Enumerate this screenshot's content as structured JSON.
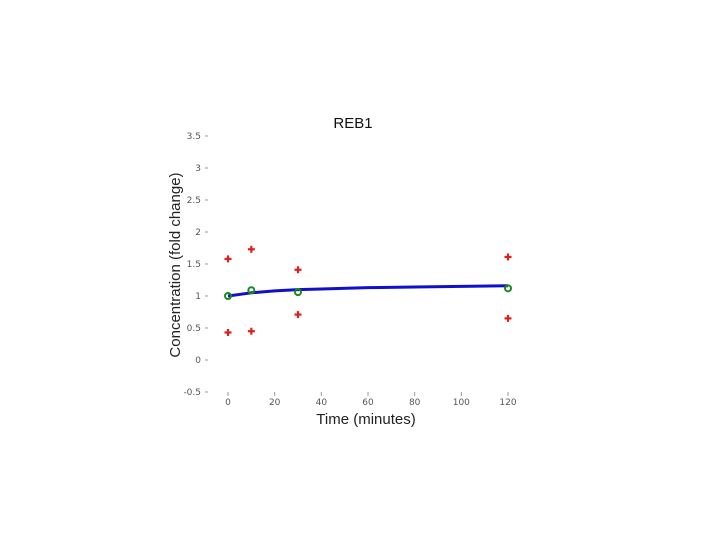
{
  "chart_data": {
    "type": "scatter",
    "title": "REB1",
    "xlabel": "Time (minutes)",
    "ylabel": "Concentration (fold change)",
    "xlim": [
      0,
      120
    ],
    "ylim": [
      -0.5,
      3.5
    ],
    "x_ticks": [
      "0",
      "20",
      "40",
      "60",
      "80",
      "100",
      "120"
    ],
    "y_ticks": [
      "-0.5",
      "0",
      "0.5",
      "1",
      "1.5",
      "2",
      "2.5",
      "3",
      "3.5"
    ],
    "grid": false,
    "legend": "none",
    "series": [
      {
        "marker": "plus",
        "color": "#dd1f1f",
        "points": [
          {
            "x": 0,
            "y": 1.58
          },
          {
            "x": 0,
            "y": 0.43
          },
          {
            "x": 10,
            "y": 1.73
          },
          {
            "x": 10,
            "y": 0.45
          },
          {
            "x": 30,
            "y": 1.41
          },
          {
            "x": 30,
            "y": 0.71
          },
          {
            "x": 120,
            "y": 1.61
          },
          {
            "x": 120,
            "y": 0.65
          }
        ]
      },
      {
        "marker": "circle",
        "color": "#1a8a1a",
        "points": [
          {
            "x": 0,
            "y": 1.0
          },
          {
            "x": 10,
            "y": 1.09
          },
          {
            "x": 30,
            "y": 1.06
          },
          {
            "x": 120,
            "y": 1.12
          }
        ]
      },
      {
        "marker": "line",
        "color": "#1010cc",
        "points": [
          {
            "x": 0,
            "y": 1.0
          },
          {
            "x": 10,
            "y": 1.05
          },
          {
            "x": 20,
            "y": 1.08
          },
          {
            "x": 30,
            "y": 1.1
          },
          {
            "x": 40,
            "y": 1.11
          },
          {
            "x": 60,
            "y": 1.13
          },
          {
            "x": 80,
            "y": 1.14
          },
          {
            "x": 100,
            "y": 1.15
          },
          {
            "x": 120,
            "y": 1.16
          }
        ]
      }
    ]
  }
}
